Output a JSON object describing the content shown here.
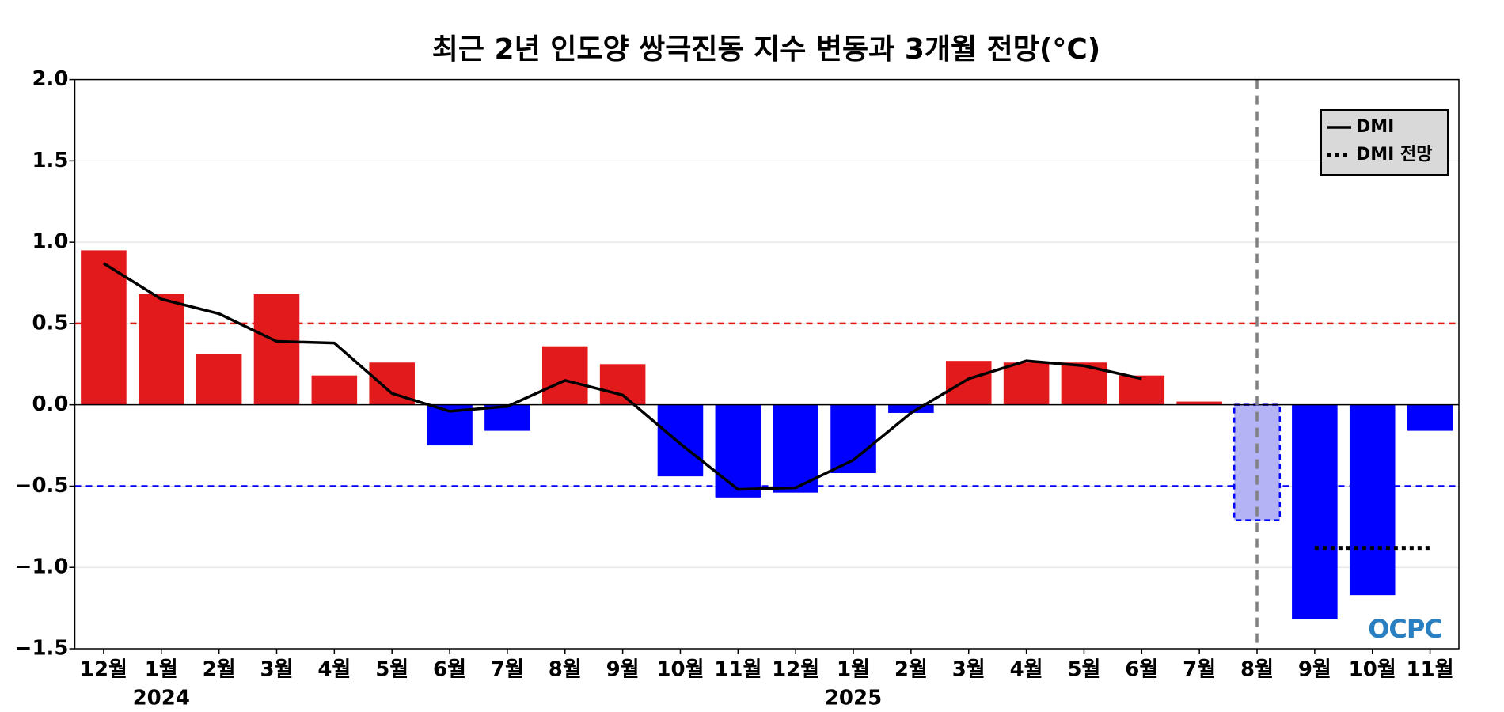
{
  "chart_data": {
    "type": "bar",
    "title": "최근 2년 인도양 쌍극진동 지수 변동과 3개월 전망(°C)",
    "categories": [
      "12월",
      "1월",
      "2월",
      "3월",
      "4월",
      "5월",
      "6월",
      "7월",
      "8월",
      "9월",
      "10월",
      "11월",
      "12월",
      "1월",
      "2월",
      "3월",
      "4월",
      "5월",
      "6월",
      "7월",
      "8월",
      "9월",
      "10월",
      "11월"
    ],
    "year_labels": [
      {
        "index": 1,
        "label": "2024"
      },
      {
        "index": 13,
        "label": "2025"
      }
    ],
    "values": [
      0.95,
      0.68,
      0.31,
      0.68,
      0.18,
      0.26,
      -0.25,
      -0.16,
      0.36,
      0.25,
      -0.44,
      -0.57,
      -0.54,
      -0.42,
      -0.05,
      0.27,
      0.26,
      0.26,
      0.18,
      0.02,
      -0.71,
      -1.32,
      -1.17,
      -0.16
    ],
    "positive_color": "#e31a1c",
    "negative_color": "#0000ff",
    "forecast_bar_index": 20,
    "forecast_bar_color": "#b3b3f5",
    "series": [
      {
        "name": "DMI",
        "color": "#000000",
        "style": "solid",
        "values": [
          0.87,
          0.65,
          0.56,
          0.39,
          0.38,
          0.07,
          -0.04,
          -0.01,
          0.15,
          0.06,
          -0.24,
          -0.52,
          -0.51,
          -0.34,
          -0.05,
          0.16,
          0.27,
          0.24,
          0.16,
          null,
          null,
          null,
          null,
          null
        ]
      },
      {
        "name": "DMI 전망",
        "color": "#000000",
        "style": "dotted",
        "values": [
          null,
          null,
          null,
          null,
          null,
          null,
          null,
          null,
          null,
          null,
          null,
          null,
          null,
          null,
          null,
          null,
          null,
          null,
          null,
          null,
          null,
          -0.88,
          -0.88,
          -0.88
        ]
      }
    ],
    "reference_lines": [
      {
        "value": 0.5,
        "color": "#e31a1c"
      },
      {
        "value": -0.5,
        "color": "#0000ff"
      }
    ],
    "ylim": [
      -1.5,
      2.0
    ],
    "yticks": [
      {
        "value": -1.5,
        "label": "−1.5"
      },
      {
        "value": -1.0,
        "label": "−1.0"
      },
      {
        "value": -0.5,
        "label": "−0.5"
      },
      {
        "value": 0,
        "label": "0.0"
      },
      {
        "value": 0.5,
        "label": "0.5"
      },
      {
        "value": 1.0,
        "label": "1.0"
      },
      {
        "value": 1.5,
        "label": "1.5"
      },
      {
        "value": 2.0,
        "label": "2.0"
      }
    ],
    "grid": true,
    "legend": "upper right",
    "logo": "OCPC"
  }
}
